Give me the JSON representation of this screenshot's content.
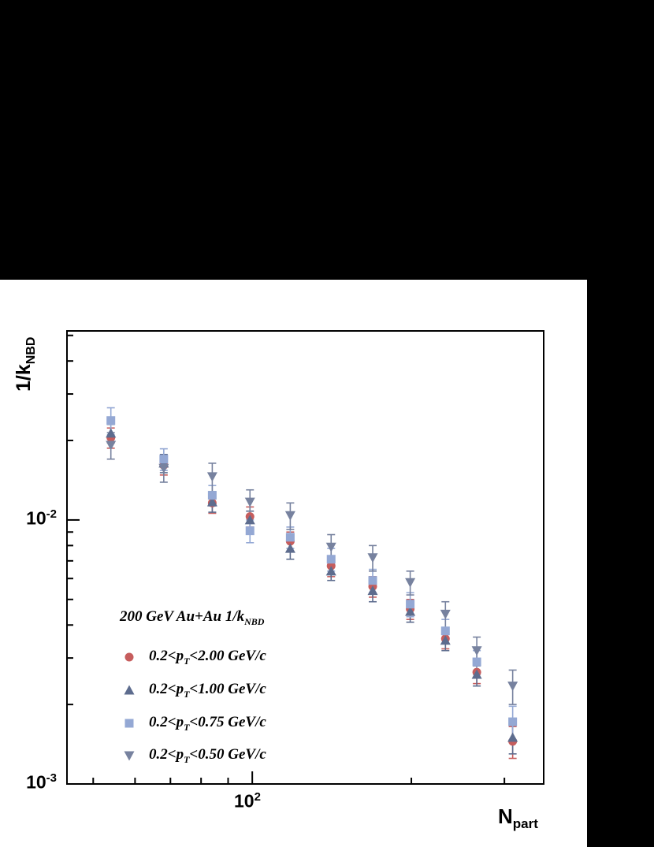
{
  "chart_data": {
    "type": "scatter",
    "title": "200 GeV Au+Au 1/k_NBD",
    "xlabel": "N_part",
    "ylabel": "1/k_NBD",
    "x_scale": "log",
    "y_scale": "log",
    "xlim": [
      44.6,
      356
    ],
    "ylim": [
      0.001,
      0.052
    ],
    "grid": false,
    "legend_position": "lower-left-inside",
    "frame_color": "#000000",
    "background": "#ffffff",
    "outer_background": "#000000",
    "x_major_ticks": [
      100
    ],
    "x_minor_ticks": [
      50,
      60,
      70,
      80,
      90,
      200,
      300
    ],
    "y_major_ticks": [
      0.01,
      0.001
    ],
    "y_minor_ticks": [
      0.002,
      0.003,
      0.004,
      0.005,
      0.006,
      0.007,
      0.008,
      0.009,
      0.02,
      0.03,
      0.04,
      0.05
    ],
    "x": [
      54,
      68,
      84,
      99,
      118,
      141,
      169,
      199,
      232,
      266,
      311
    ],
    "series": [
      {
        "name": "0.2<pT<2.00 GeV/c",
        "marker": "circle",
        "color": "#c65d5d",
        "values": [
          0.0205,
          0.0161,
          0.0116,
          0.0103,
          0.0083,
          0.0067,
          0.0056,
          0.0046,
          0.00355,
          0.00265,
          0.00145
        ],
        "errors": [
          0.0018,
          0.0013,
          0.001,
          0.0009,
          0.0007,
          0.0006,
          0.0005,
          0.0004,
          0.0003,
          0.00025,
          0.0002
        ]
      },
      {
        "name": "0.2<pT<1.00 GeV/c",
        "marker": "triangle-up",
        "color": "#5d6c8e",
        "values": [
          0.0213,
          0.0164,
          0.0117,
          0.01,
          0.0078,
          0.0064,
          0.0054,
          0.0045,
          0.0035,
          0.0026,
          0.0015
        ],
        "errors": [
          0.0017,
          0.0013,
          0.001,
          0.0008,
          0.0007,
          0.0005,
          0.0005,
          0.0004,
          0.0003,
          0.00025,
          0.0002
        ]
      },
      {
        "name": "0.2<pT<0.75 GeV/c",
        "marker": "square",
        "color": "#94a8d4",
        "values": [
          0.0238,
          0.017,
          0.0124,
          0.0091,
          0.0086,
          0.0071,
          0.0059,
          0.0048,
          0.0038,
          0.0029,
          0.00172
        ],
        "errors": [
          0.0028,
          0.0016,
          0.0011,
          0.0009,
          0.0008,
          0.0007,
          0.0006,
          0.0005,
          0.0004,
          0.0003,
          0.00025
        ]
      },
      {
        "name": "0.2<pT<0.50 GeV/c",
        "marker": "triangle-down",
        "color": "#77829f",
        "values": [
          0.0192,
          0.0157,
          0.0146,
          0.0117,
          0.0104,
          0.0079,
          0.0072,
          0.0058,
          0.0044,
          0.0032,
          0.00235
        ],
        "errors": [
          0.0022,
          0.0018,
          0.0018,
          0.0013,
          0.0012,
          0.0009,
          0.0008,
          0.0006,
          0.0005,
          0.0004,
          0.00035
        ]
      }
    ]
  },
  "display": {
    "ylabel": {
      "pre": "1/k",
      "sub": "NBD"
    },
    "xlabel": {
      "pre": "N",
      "sub": "part"
    },
    "ytick_top": {
      "base": "10",
      "exp": "-2"
    },
    "ytick_bottom": {
      "base": "10",
      "exp": "-3"
    },
    "xtick": {
      "base": "10",
      "exp": "2"
    },
    "legend_title": {
      "pre": "200 GeV Au+Au 1/k",
      "sub": "NBD"
    },
    "legend_entries": [
      {
        "pre": "0.2<p",
        "sub": "T",
        "post": "<2.00 GeV/c"
      },
      {
        "pre": "0.2<p",
        "sub": "T",
        "post": "<1.00 GeV/c"
      },
      {
        "pre": "0.2<p",
        "sub": "T",
        "post": "<0.75 GeV/c"
      },
      {
        "pre": "0.2<p",
        "sub": "T",
        "post": "<0.50 GeV/c"
      }
    ]
  }
}
